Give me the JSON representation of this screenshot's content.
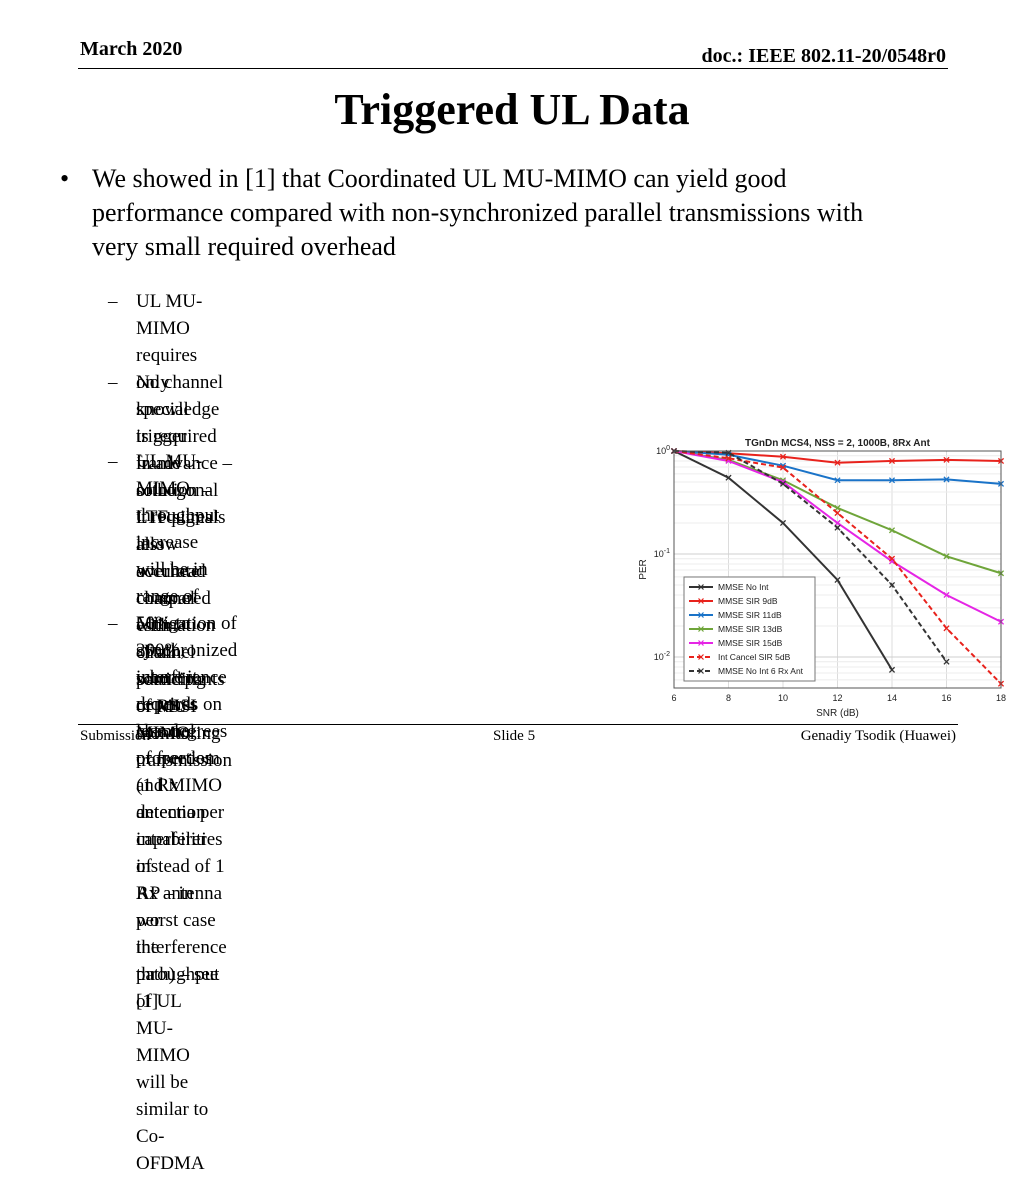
{
  "header": {
    "date": "March 2020",
    "doc": "doc.: IEEE 802.11-20/0548r0"
  },
  "title": "Triggered UL Data",
  "bullet": {
    "marker": "•",
    "lines": [
      "We showed in [1] that Coordinated UL MU-MIMO can yield good",
      "performance compared with non-synchronized parallel transmissions with",
      "very small required overhead"
    ]
  },
  "subbullets": [
    {
      "lines": [
        "UL MU-MIMO requires only special trigger frame solution – it requires less overhead",
        "compared with channel sounding or RSSI monitoring"
      ]
    },
    {
      "lines": [
        "No channel knowledge is required in advance – orthogonal LTF signals allow accurate",
        "channel estimation of all participants of MU-MIMO transmission"
      ]
    },
    {
      "lines": [
        "UL MU-MIMO throughput increase will be in range of",
        "50% to 200%, where it depends on channel",
        "properties and MIMO detection capabilities of",
        "AP – in worst case the throughput of UL",
        "MU-MIMO will be similar to Co-OFDMA"
      ]
    },
    {
      "lines": [
        "Mitigation of  synchronized interference requires",
        "less degrees of freedom (1 Rx antenna per interferer",
        "instead of 1 Rx antenna per interference path) – see [1]"
      ]
    }
  ],
  "footer": {
    "left": "Submission",
    "center": "Slide 5",
    "right": "Genadiy Tsodik (Huawei)"
  },
  "chart_data": {
    "type": "line",
    "title": "TGnDn MCS4, NSS = 2, 1000B, 8Rx Ant",
    "xlabel": "SNR (dB)",
    "ylabel": "PER",
    "xlim": [
      6,
      18
    ],
    "ylim": [
      0.005,
      1
    ],
    "yscale": "log",
    "xticks": [
      "6",
      "8",
      "10",
      "12",
      "14",
      "16",
      "18"
    ],
    "yticks": [
      {
        "base": "10",
        "exp": "0"
      },
      {
        "base": "10",
        "exp": "-1"
      },
      {
        "base": "10",
        "exp": "-2"
      }
    ],
    "grid": true,
    "legend_position": "bottom-left",
    "series": [
      {
        "name": "MMSE No Int",
        "color": "#333333",
        "dashed": false,
        "x": [
          6,
          8,
          10,
          12,
          14
        ],
        "y": [
          1.0,
          0.55,
          0.2,
          0.056,
          0.0075
        ]
      },
      {
        "name": "MMSE SIR 9dB",
        "color": "#e8221c",
        "dashed": false,
        "x": [
          6,
          8,
          10,
          12,
          14,
          16,
          18
        ],
        "y": [
          1.0,
          0.95,
          0.88,
          0.77,
          0.8,
          0.82,
          0.8
        ]
      },
      {
        "name": "MMSE SIR 11dB",
        "color": "#1a73c8",
        "dashed": false,
        "x": [
          6,
          8,
          10,
          12,
          14,
          16,
          18
        ],
        "y": [
          1.0,
          0.92,
          0.72,
          0.52,
          0.52,
          0.53,
          0.48
        ]
      },
      {
        "name": "MMSE SIR 13dB",
        "color": "#6fa53a",
        "dashed": false,
        "x": [
          6,
          8,
          10,
          12,
          14,
          16,
          18
        ],
        "y": [
          1.0,
          0.82,
          0.52,
          0.28,
          0.17,
          0.095,
          0.065
        ]
      },
      {
        "name": "MMSE SIR 15dB",
        "color": "#e525e5",
        "dashed": false,
        "x": [
          6,
          8,
          10,
          12,
          14,
          16,
          18
        ],
        "y": [
          1.0,
          0.8,
          0.5,
          0.2,
          0.085,
          0.04,
          0.022
        ]
      },
      {
        "name": "Int Cancel SIR 5dB",
        "color": "#e8221c",
        "dashed": true,
        "x": [
          6,
          8,
          10,
          12,
          14,
          16,
          18
        ],
        "y": [
          1.0,
          0.85,
          0.69,
          0.25,
          0.09,
          0.019,
          0.0055
        ]
      },
      {
        "name": "MMSE No Int 6 Rx Ant",
        "color": "#333333",
        "dashed": true,
        "x": [
          6,
          8,
          10,
          12,
          14,
          16
        ],
        "y": [
          1.0,
          0.96,
          0.48,
          0.18,
          0.05,
          0.009
        ]
      }
    ]
  }
}
